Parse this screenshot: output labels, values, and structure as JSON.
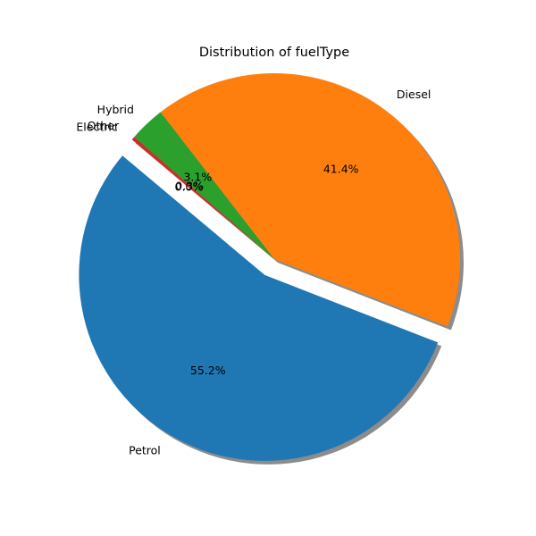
{
  "chart_data": {
    "type": "pie",
    "title": "Distribution of fuelType",
    "categories": [
      "Petrol",
      "Diesel",
      "Hybrid",
      "Other",
      "Electric"
    ],
    "values": [
      55.2,
      41.4,
      3.1,
      0.3,
      0.0
    ],
    "percent_labels": [
      "55.2%",
      "41.4%",
      "3.1%",
      "0.3%",
      "0.0%"
    ],
    "colors": [
      "#1f77b4",
      "#ff7f0e",
      "#2ca02c",
      "#d62728",
      "#9467bd"
    ],
    "exploded": [
      "Petrol"
    ],
    "shadow": true,
    "start_angle_deg": 140,
    "direction": "counterclockwise"
  }
}
